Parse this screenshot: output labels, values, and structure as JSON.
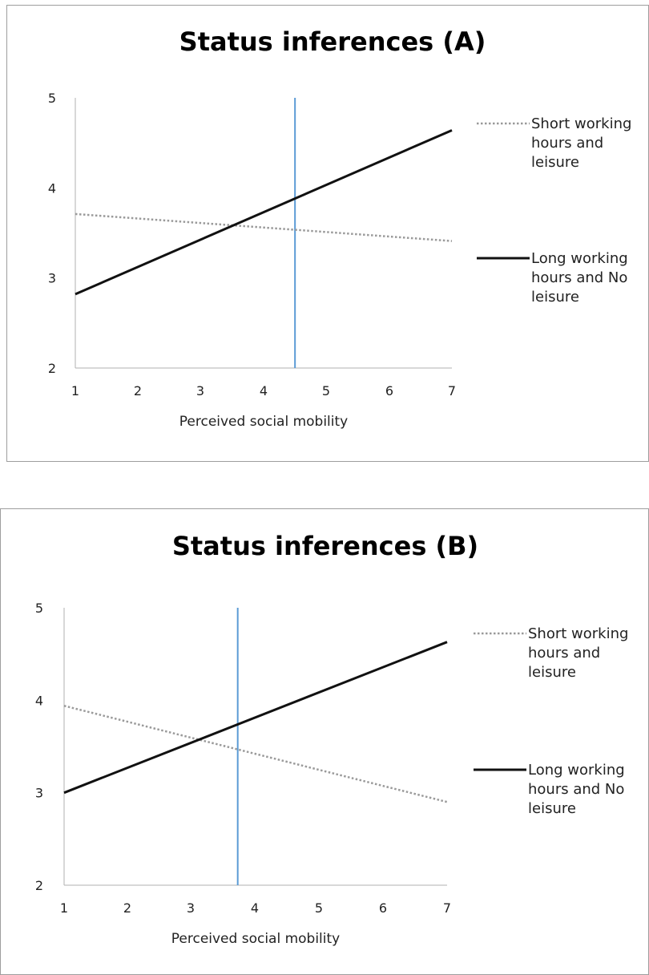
{
  "chart_data": [
    {
      "type": "line",
      "title": "Status inferences (A)",
      "xlabel": "Perceived social mobility",
      "ylabel": "",
      "xlim": [
        1,
        7
      ],
      "ylim": [
        2,
        5
      ],
      "x_ticks": [
        "1",
        "2",
        "3",
        "4",
        "5",
        "6",
        "7"
      ],
      "y_ticks": [
        "2",
        "3",
        "4",
        "5"
      ],
      "grid": false,
      "legend_position": "right",
      "series": [
        {
          "name": "Short working hours and leisure",
          "style": "dotted",
          "color": "#9a9a9a",
          "x": [
            1,
            7
          ],
          "y": [
            3.71,
            3.41
          ]
        },
        {
          "name": "Long working hours and No leisure",
          "style": "solid",
          "color": "#111111",
          "x": [
            1,
            7
          ],
          "y": [
            2.82,
            4.64
          ]
        }
      ],
      "reference_line": {
        "x": 4.5,
        "color": "#5b9bd5"
      }
    },
    {
      "type": "line",
      "title": "Status inferences (B)",
      "xlabel": "Perceived social mobility",
      "ylabel": "",
      "xlim": [
        1,
        7
      ],
      "ylim": [
        2,
        5
      ],
      "x_ticks": [
        "1",
        "2",
        "3",
        "4",
        "5",
        "6",
        "7"
      ],
      "y_ticks": [
        "2",
        "3",
        "4",
        "5"
      ],
      "grid": false,
      "legend_position": "right",
      "series": [
        {
          "name": "Short working hours and leisure",
          "style": "dotted",
          "color": "#9a9a9a",
          "x": [
            1,
            7
          ],
          "y": [
            3.94,
            2.9
          ]
        },
        {
          "name": "Long working hours and No leisure",
          "style": "solid",
          "color": "#111111",
          "x": [
            1,
            7
          ],
          "y": [
            3.0,
            4.63
          ]
        }
      ],
      "reference_line": {
        "x": 3.72,
        "color": "#5b9bd5"
      }
    }
  ]
}
